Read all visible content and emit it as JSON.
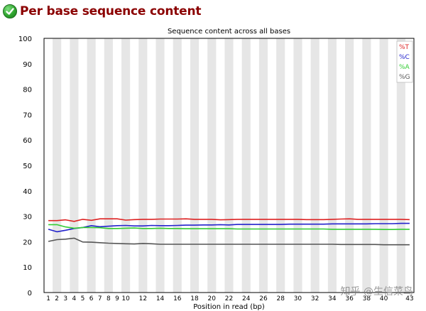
{
  "module": {
    "title": "Per base sequence content",
    "status": "pass",
    "status_icon": "check-circle-icon"
  },
  "watermark": "知乎 @生信菜鸟",
  "chart_data": {
    "type": "line",
    "title": "Sequence content across all bases",
    "xlabel": "Position in read (bp)",
    "ylabel": "",
    "ylim": [
      0,
      100
    ],
    "yticks": [
      0,
      10,
      20,
      30,
      40,
      50,
      60,
      70,
      80,
      90,
      100
    ],
    "categories": [
      "1",
      "2",
      "3",
      "4",
      "5",
      "6",
      "7",
      "8",
      "9",
      "10",
      "11",
      "12",
      "13",
      "14",
      "15",
      "16",
      "17",
      "18",
      "19",
      "20",
      "21",
      "22",
      "23",
      "24",
      "25",
      "26",
      "27",
      "28",
      "29",
      "30",
      "31",
      "32",
      "33",
      "34",
      "35",
      "36",
      "37",
      "38",
      "39",
      "40",
      "41",
      "42",
      "43"
    ],
    "category_labels": [
      "1",
      "2",
      "3",
      "4",
      "5",
      "6",
      "7",
      "8",
      "9",
      "10",
      "",
      "12",
      "",
      "14",
      "",
      "16",
      "",
      "18",
      "",
      "20",
      "",
      "22",
      "",
      "24",
      "",
      "26",
      "",
      "28",
      "",
      "30",
      "",
      "32",
      "",
      "34",
      "",
      "36",
      "",
      "38",
      "",
      "40",
      "",
      "",
      "43"
    ],
    "grid": "alternating vertical bands",
    "legend_position": "top-right",
    "series": [
      {
        "name": "%T",
        "color": "#dd2222",
        "values": [
          28.3,
          28.3,
          28.6,
          28.0,
          28.8,
          28.4,
          29.0,
          29.0,
          29.0,
          28.5,
          28.7,
          28.8,
          28.8,
          28.9,
          28.9,
          28.9,
          29.0,
          28.8,
          28.8,
          28.8,
          28.6,
          28.7,
          28.8,
          28.8,
          28.8,
          28.8,
          28.8,
          28.8,
          28.8,
          28.8,
          28.7,
          28.7,
          28.7,
          28.8,
          28.9,
          29.0,
          28.8,
          28.8,
          28.8,
          28.8,
          28.8,
          28.8,
          28.7
        ]
      },
      {
        "name": "%C",
        "color": "#2222cc",
        "values": [
          24.9,
          23.9,
          24.5,
          25.2,
          25.6,
          26.3,
          25.9,
          26.1,
          26.3,
          26.4,
          26.2,
          26.2,
          26.4,
          26.3,
          26.3,
          26.4,
          26.5,
          26.5,
          26.6,
          26.6,
          26.7,
          26.6,
          26.8,
          26.8,
          26.8,
          26.8,
          26.8,
          26.8,
          26.9,
          26.9,
          26.9,
          26.9,
          26.9,
          27.0,
          27.0,
          27.0,
          27.0,
          27.0,
          27.1,
          27.1,
          27.1,
          27.2,
          27.2
        ]
      },
      {
        "name": "%A",
        "color": "#33cc33",
        "values": [
          26.7,
          26.7,
          25.8,
          25.3,
          25.6,
          25.6,
          25.5,
          25.2,
          25.2,
          25.3,
          25.4,
          25.2,
          25.2,
          25.3,
          25.2,
          25.2,
          25.1,
          25.1,
          25.1,
          25.1,
          25.1,
          25.1,
          25.0,
          25.0,
          25.0,
          25.0,
          25.0,
          25.0,
          25.0,
          25.0,
          25.0,
          25.0,
          25.0,
          24.9,
          24.9,
          24.9,
          24.9,
          24.9,
          24.9,
          24.8,
          24.8,
          24.9,
          24.9
        ]
      },
      {
        "name": "%G",
        "color": "#555555",
        "values": [
          20.1,
          20.8,
          21.0,
          21.4,
          19.9,
          19.8,
          19.6,
          19.4,
          19.3,
          19.2,
          19.1,
          19.3,
          19.2,
          19.0,
          19.0,
          19.0,
          19.0,
          19.0,
          19.0,
          19.0,
          19.0,
          19.0,
          19.0,
          19.0,
          19.0,
          19.0,
          19.0,
          19.0,
          19.0,
          19.0,
          19.0,
          19.0,
          19.0,
          19.0,
          18.9,
          18.9,
          18.9,
          18.9,
          18.9,
          18.8,
          18.8,
          18.8,
          18.8
        ]
      }
    ]
  }
}
